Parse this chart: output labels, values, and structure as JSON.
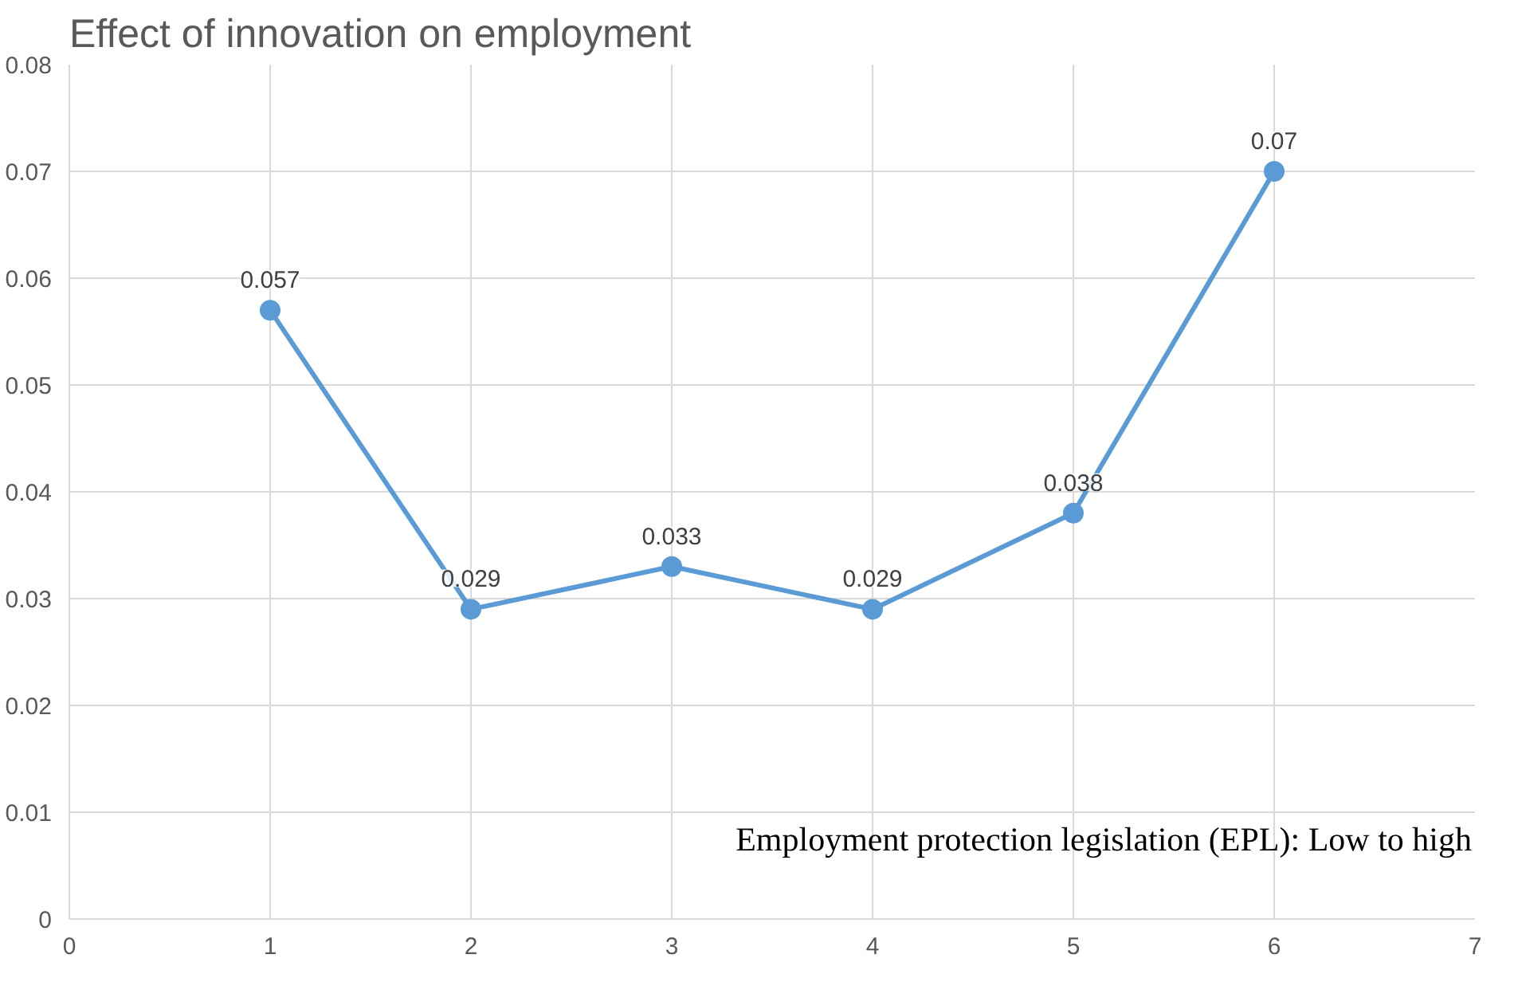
{
  "chart_data": {
    "type": "line",
    "title": "Effect of innovation on employment",
    "x": [
      1,
      2,
      3,
      4,
      5,
      6
    ],
    "series": [
      {
        "color": "#5b9bd5",
        "values": [
          0.057,
          0.029,
          0.033,
          0.029,
          0.038,
          0.07
        ]
      }
    ],
    "xlim": [
      0,
      7
    ],
    "xticks": [
      0,
      1,
      2,
      3,
      4,
      5,
      6,
      7
    ],
    "ylim": [
      0,
      0.08
    ],
    "yticks": [
      0,
      0.01,
      0.02,
      0.03,
      0.04,
      0.05,
      0.06,
      0.07,
      0.08
    ],
    "grid": true,
    "marker": "circle",
    "line_style": "solid",
    "data_labels": true,
    "annotations": [
      "Employment protection legislation (EPL): Low to high"
    ]
  }
}
